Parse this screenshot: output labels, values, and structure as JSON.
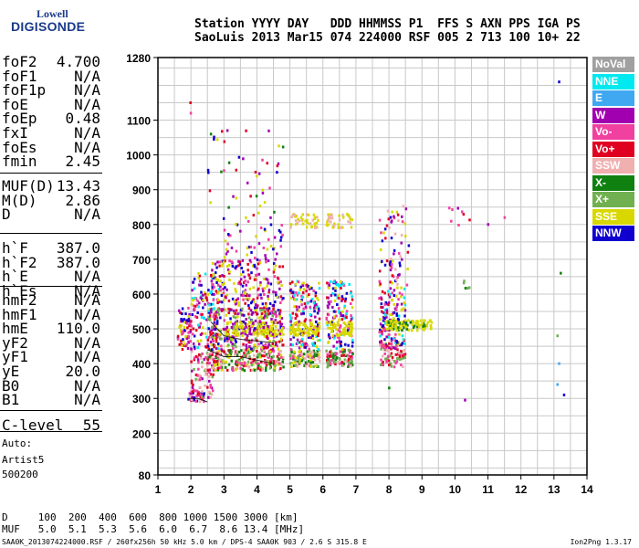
{
  "logo": {
    "line1": "Lowell",
    "line2": "DIGISONDE"
  },
  "header": {
    "line1": "Station YYYY DAY   DDD HHMMSS P1  FFS S AXN PPS IGA PS",
    "line2": "SaoLuis 2013 Mar15 074 224000 RSF 005 2 713 100 10+ 22"
  },
  "params_group1": [
    {
      "k": "foF2",
      "v": "4.700"
    },
    {
      "k": "foF1",
      "v": "N/A"
    },
    {
      "k": "foF1p",
      "v": "N/A"
    },
    {
      "k": "foE",
      "v": "N/A"
    },
    {
      "k": "foEp",
      "v": "0.48"
    },
    {
      "k": "fxI",
      "v": "N/A"
    },
    {
      "k": "foEs",
      "v": "N/A"
    },
    {
      "k": "fmin",
      "v": "2.45"
    }
  ],
  "params_group2": [
    {
      "k": "MUF(D)",
      "v": "13.43"
    },
    {
      "k": "M(D)",
      "v": "2.86"
    },
    {
      "k": "D",
      "v": "N/A"
    }
  ],
  "params_group3": [
    {
      "k": "h`F",
      "v": "387.0"
    },
    {
      "k": "h`F2",
      "v": "387.0"
    },
    {
      "k": "h`E",
      "v": "N/A"
    },
    {
      "k": "h`Es",
      "v": "N/A"
    }
  ],
  "params_group4": [
    {
      "k": "hmF2",
      "v": "N/A"
    },
    {
      "k": "hmF1",
      "v": "N/A"
    },
    {
      "k": "hmE",
      "v": "110.0"
    },
    {
      "k": "yF2",
      "v": "N/A"
    },
    {
      "k": "yF1",
      "v": "N/A"
    },
    {
      "k": "yE",
      "v": "20.0"
    },
    {
      "k": "B0",
      "v": "N/A"
    },
    {
      "k": "B1",
      "v": "N/A"
    }
  ],
  "c_level": {
    "k": "C-level",
    "v": "55"
  },
  "auto": {
    "line1": "Auto:",
    "line2": "Artist5",
    "line3": "500200"
  },
  "legend": [
    {
      "label": "NoVal",
      "color": "#a0a0a0"
    },
    {
      "label": "NNE",
      "color": "#00e8f0"
    },
    {
      "label": "E",
      "color": "#40a8f0"
    },
    {
      "label": "W",
      "color": "#a000b0"
    },
    {
      "label": "Vo-",
      "color": "#f040a0"
    },
    {
      "label": "Vo+",
      "color": "#e00020"
    },
    {
      "label": "SSW",
      "color": "#f0b0b0"
    },
    {
      "label": "X-",
      "color": "#108010"
    },
    {
      "label": "X+",
      "color": "#70b050"
    },
    {
      "label": "SSE",
      "color": "#d8d800"
    },
    {
      "label": "NNW",
      "color": "#1000d0"
    }
  ],
  "bottom": {
    "d_line": "D     100  200  400  600  800 1000 1500 3000 [km]",
    "muf_line": "MUF   5.0  5.1  5.3  5.6  6.0  6.7  8.6 13.4 [MHz]"
  },
  "footer": {
    "left": "SAA0K_2013074224000.RSF / 260fx256h 50 kHz 5.0 km / DPS-4 SAA0K 903 / 2.6 S 315.8 E",
    "right": "Ion2Png 1.3.17"
  },
  "chart_data": {
    "type": "scatter",
    "title": "",
    "xlabel": "",
    "ylabel": "",
    "xlim": [
      1,
      14
    ],
    "ylim": [
      80,
      1280
    ],
    "x_ticks": [
      1,
      2,
      3,
      4,
      5,
      6,
      7,
      8,
      9,
      10,
      11,
      12,
      13,
      14
    ],
    "y_ticks": [
      80,
      200,
      300,
      400,
      500,
      600,
      700,
      800,
      900,
      1000,
      1100,
      1280
    ],
    "x_minor_step": 0.5,
    "y_minor_step": 50,
    "grid": true,
    "lines": [
      {
        "name": "",
        "color": "#000000",
        "points": [
          [
            1.95,
            300
          ],
          [
            2.2,
            300
          ],
          [
            2.5,
            290
          ]
        ]
      },
      {
        "name": "",
        "color": "#000000",
        "points": [
          [
            2.5,
            440
          ],
          [
            3.0,
            420
          ],
          [
            3.5,
            420
          ],
          [
            4.0,
            410
          ],
          [
            4.5,
            400
          ]
        ]
      },
      {
        "name": "",
        "color": "#000000",
        "points": [
          [
            2.6,
            520
          ],
          [
            3.0,
            480
          ],
          [
            3.5,
            470
          ],
          [
            4.0,
            465
          ],
          [
            4.5,
            460
          ]
        ]
      }
    ],
    "clusters": [
      {
        "x": [
          1.6,
          2.0
        ],
        "y": [
          440,
          560
        ],
        "n": 70,
        "colors": [
          3,
          10,
          4,
          5,
          9
        ]
      },
      {
        "x": [
          1.9,
          2.4
        ],
        "y": [
          290,
          320
        ],
        "n": 30,
        "colors": [
          5,
          4,
          6,
          10
        ]
      },
      {
        "x": [
          2.0,
          2.7
        ],
        "y": [
          300,
          440
        ],
        "n": 90,
        "colors": [
          4,
          5,
          6,
          8,
          3
        ]
      },
      {
        "x": [
          2.0,
          2.9
        ],
        "y": [
          440,
          660
        ],
        "n": 140,
        "colors": [
          3,
          10,
          4,
          5,
          9,
          1
        ]
      },
      {
        "x": [
          2.5,
          4.8
        ],
        "y": [
          380,
          440
        ],
        "n": 260,
        "colors": [
          4,
          5,
          6,
          8,
          7,
          9
        ]
      },
      {
        "x": [
          2.5,
          4.8
        ],
        "y": [
          440,
          560
        ],
        "n": 320,
        "colors": [
          3,
          10,
          4,
          5,
          9,
          8
        ]
      },
      {
        "x": [
          2.6,
          4.8
        ],
        "y": [
          560,
          700
        ],
        "n": 200,
        "colors": [
          3,
          10,
          4,
          5,
          9
        ]
      },
      {
        "x": [
          2.8,
          4.8
        ],
        "y": [
          700,
          820
        ],
        "n": 50,
        "colors": [
          9,
          3,
          10,
          4
        ]
      },
      {
        "x": [
          2.4,
          4.8
        ],
        "y": [
          820,
          1070
        ],
        "n": 40,
        "colors": [
          9,
          3,
          10,
          4,
          7,
          5
        ]
      },
      {
        "x": [
          3.0,
          4.8
        ],
        "y": [
          480,
          520
        ],
        "n": 120,
        "colors": [
          9,
          9,
          9,
          3
        ]
      },
      {
        "x": [
          5.0,
          5.9
        ],
        "y": [
          390,
          440
        ],
        "n": 110,
        "colors": [
          7,
          8,
          9,
          4,
          6
        ]
      },
      {
        "x": [
          5.0,
          5.9
        ],
        "y": [
          440,
          640
        ],
        "n": 170,
        "colors": [
          3,
          10,
          4,
          5,
          9,
          1
        ]
      },
      {
        "x": [
          5.0,
          5.9
        ],
        "y": [
          790,
          830
        ],
        "n": 40,
        "colors": [
          9,
          9,
          6
        ]
      },
      {
        "x": [
          5.0,
          5.9
        ],
        "y": [
          480,
          520
        ],
        "n": 70,
        "colors": [
          9,
          9,
          9
        ]
      },
      {
        "x": [
          6.1,
          6.9
        ],
        "y": [
          390,
          440
        ],
        "n": 100,
        "colors": [
          4,
          5,
          6,
          8,
          7
        ]
      },
      {
        "x": [
          6.1,
          6.9
        ],
        "y": [
          440,
          640
        ],
        "n": 150,
        "colors": [
          3,
          10,
          4,
          5,
          9,
          1
        ]
      },
      {
        "x": [
          6.1,
          6.9
        ],
        "y": [
          790,
          830
        ],
        "n": 40,
        "colors": [
          9,
          9,
          6
        ]
      },
      {
        "x": [
          6.1,
          6.9
        ],
        "y": [
          480,
          520
        ],
        "n": 60,
        "colors": [
          9,
          9,
          9
        ]
      },
      {
        "x": [
          7.7,
          8.5
        ],
        "y": [
          390,
          460
        ],
        "n": 70,
        "colors": [
          4,
          5,
          6,
          8
        ]
      },
      {
        "x": [
          7.7,
          8.5
        ],
        "y": [
          440,
          620
        ],
        "n": 140,
        "colors": [
          3,
          10,
          4,
          5,
          9,
          1
        ]
      },
      {
        "x": [
          7.7,
          8.6
        ],
        "y": [
          620,
          860
        ],
        "n": 70,
        "colors": [
          3,
          10,
          4,
          5,
          9,
          6
        ]
      },
      {
        "x": [
          7.9,
          9.3
        ],
        "y": [
          495,
          525
        ],
        "n": 110,
        "colors": [
          9,
          9,
          9,
          7
        ]
      },
      {
        "x": [
          9.8,
          10.6
        ],
        "y": [
          790,
          850
        ],
        "n": 8,
        "colors": [
          3,
          4,
          5
        ]
      },
      {
        "x": [
          10.0,
          10.6
        ],
        "y": [
          600,
          640
        ],
        "n": 5,
        "colors": [
          7,
          8,
          4
        ]
      }
    ],
    "points": [
      {
        "x": 1.98,
        "y": 1150,
        "c": 5
      },
      {
        "x": 1.99,
        "y": 1120,
        "c": 4
      },
      {
        "x": 13.15,
        "y": 1210,
        "c": 10
      },
      {
        "x": 13.2,
        "y": 660,
        "c": 7
      },
      {
        "x": 13.1,
        "y": 480,
        "c": 8
      },
      {
        "x": 13.15,
        "y": 400,
        "c": 2
      },
      {
        "x": 13.1,
        "y": 340,
        "c": 2
      },
      {
        "x": 13.3,
        "y": 310,
        "c": 10
      },
      {
        "x": 10.3,
        "y": 295,
        "c": 3
      },
      {
        "x": 11.0,
        "y": 800,
        "c": 3
      },
      {
        "x": 11.5,
        "y": 820,
        "c": 4
      },
      {
        "x": 8.0,
        "y": 330,
        "c": 7
      },
      {
        "x": 2.6,
        "y": 1060,
        "c": 7
      },
      {
        "x": 3.1,
        "y": 1070,
        "c": 3
      },
      {
        "x": 4.6,
        "y": 950,
        "c": 10
      }
    ]
  }
}
